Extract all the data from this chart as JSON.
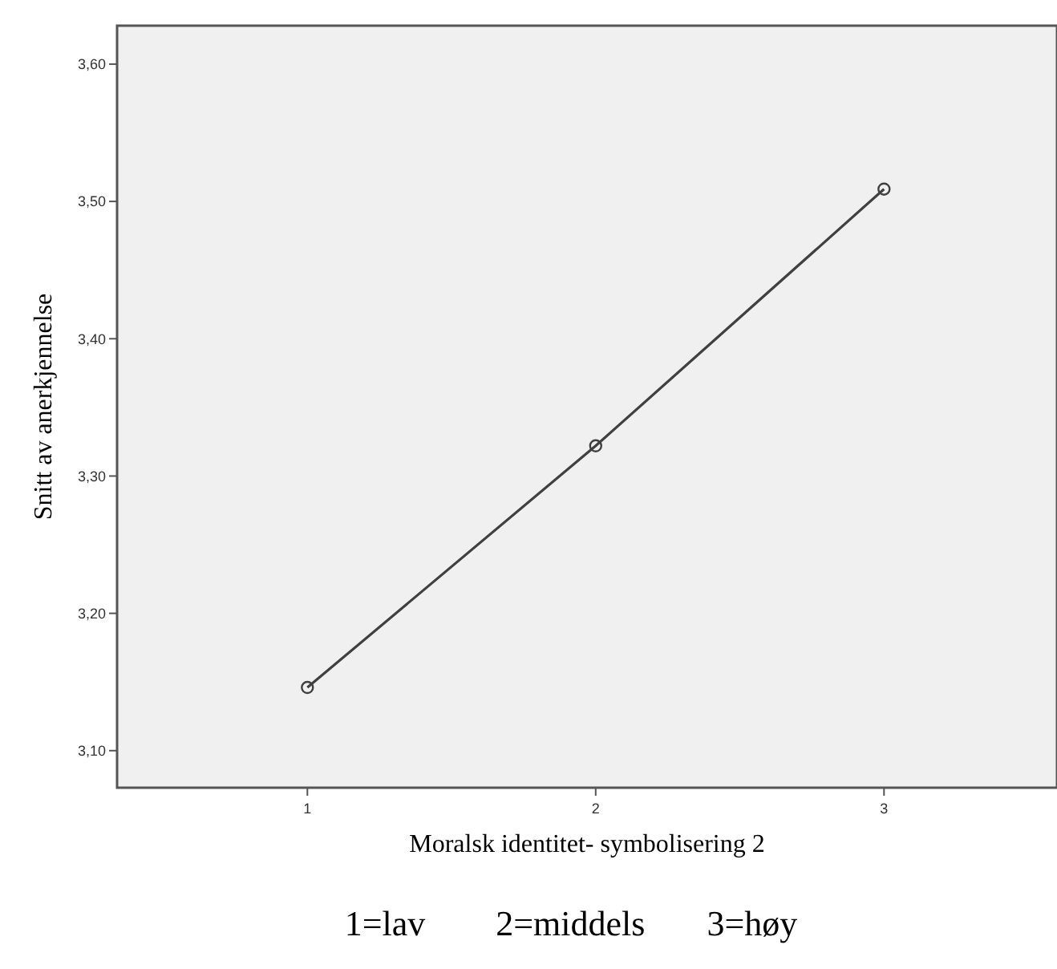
{
  "chart_data": {
    "type": "line",
    "xlabel": "Moralsk identitet- symbolisering 2",
    "ylabel": "Snitt av anerkjennelse",
    "x": [
      1,
      2,
      3
    ],
    "series": [
      {
        "color": "#404040",
        "values": [
          3.146,
          3.322,
          3.509
        ]
      }
    ],
    "xlim": [
      0.34,
      3.6
    ],
    "xticks": [
      1,
      2,
      3
    ],
    "ylim": [
      3.073,
      3.628
    ],
    "yticks": [
      {
        "value": 3.1,
        "label": "3,10"
      },
      {
        "value": 3.2,
        "label": "3,20"
      },
      {
        "value": 3.3,
        "label": "3,30"
      },
      {
        "value": 3.4,
        "label": "3,40"
      },
      {
        "value": 3.5,
        "label": "3,50"
      },
      {
        "value": 3.6,
        "label": "3,60"
      }
    ],
    "marker": "circle",
    "line_style": "solid",
    "grid": false,
    "annotations": [
      "1=lav        2=middels       3=høy"
    ]
  }
}
